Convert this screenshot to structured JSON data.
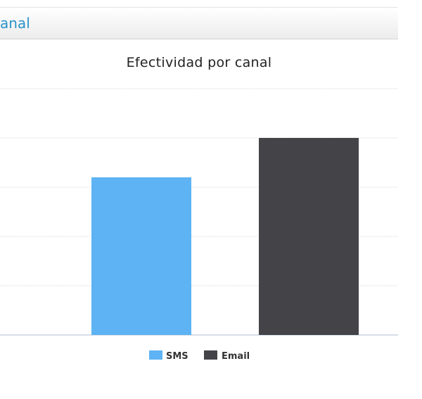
{
  "panel": {
    "title": "anal"
  },
  "colors": {
    "sms": "#5db3f3",
    "email": "#434348",
    "grid": "#d8d8d8",
    "axis": "#c8d4e0"
  },
  "chart_data": {
    "type": "bar",
    "title": "Efectividad por canal",
    "xlabel": "",
    "ylabel": "",
    "ylim": [
      0,
      5
    ],
    "grid": true,
    "legend_placement": "bottom-center",
    "series": [
      {
        "name": "SMS",
        "values": [
          3.2
        ],
        "color": "#5db3f3"
      },
      {
        "name": "Email",
        "values": [
          4
        ],
        "color": "#434348"
      }
    ]
  }
}
